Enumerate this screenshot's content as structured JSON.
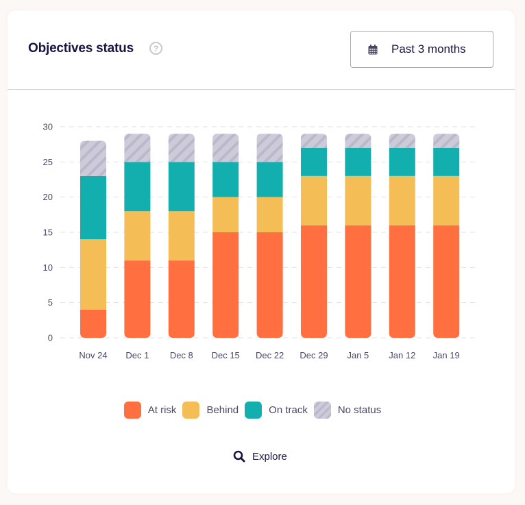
{
  "header": {
    "title": "Objectives status",
    "help_icon": "question-circle-icon",
    "range_button": {
      "icon": "calendar-icon",
      "label": "Past 3 months"
    }
  },
  "colors": {
    "at_risk": "#ff6f40",
    "behind": "#f5bd55",
    "on_track": "#12afae",
    "no_status": "#cdcbd9",
    "no_status_stripe": "#bab8c9",
    "text_dark": "#1b1440",
    "text_muted": "#4a4766"
  },
  "chart_data": {
    "type": "bar",
    "stacked": true,
    "title": "Objectives status",
    "xlabel": "",
    "ylabel": "",
    "ylim": [
      0,
      30
    ],
    "yticks": [
      0,
      5,
      10,
      15,
      20,
      25,
      30
    ],
    "grid": true,
    "legend_position": "bottom",
    "categories": [
      "Nov 24",
      "Dec 1",
      "Dec 8",
      "Dec 15",
      "Dec 22",
      "Dec 29",
      "Jan 5",
      "Jan 12",
      "Jan 19"
    ],
    "series": [
      {
        "name": "At risk",
        "key": "at_risk",
        "values": [
          4,
          11,
          11,
          15,
          15,
          16,
          16,
          16,
          16
        ]
      },
      {
        "name": "Behind",
        "key": "behind",
        "values": [
          10,
          7,
          7,
          5,
          5,
          7,
          7,
          7,
          7
        ]
      },
      {
        "name": "On track",
        "key": "on_track",
        "values": [
          9,
          7,
          7,
          5,
          5,
          4,
          4,
          4,
          4
        ]
      },
      {
        "name": "No status",
        "key": "no_status",
        "values": [
          5,
          4,
          4,
          4,
          4,
          2,
          2,
          2,
          2
        ]
      }
    ]
  },
  "legend": [
    {
      "label": "At risk",
      "key": "at_risk"
    },
    {
      "label": "Behind",
      "key": "behind"
    },
    {
      "label": "On track",
      "key": "on_track"
    },
    {
      "label": "No status",
      "key": "no_status"
    }
  ],
  "explore": {
    "icon": "search-icon",
    "label": "Explore"
  }
}
